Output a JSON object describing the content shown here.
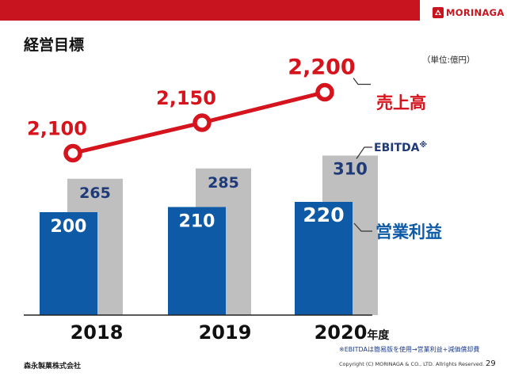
{
  "header": {
    "page_title": "経営目標",
    "unit": "（単位:億円）",
    "logo_text": "MORINAGA",
    "brand_color": "#c8141e"
  },
  "footer": {
    "footnote": "※EBITDAは簡易版を使用→営業利益+減価償却費",
    "copyright": "Copyright (C) MORINAGA & CO., LTD. Allrights Reserved.",
    "page_number": "29",
    "company": "森永製菓株式会社"
  },
  "chart_data": {
    "type": "bar",
    "categories": [
      "2018",
      "2019",
      "2020"
    ],
    "category_suffix": "年度",
    "series": [
      {
        "name": "営業利益",
        "values": [
          200,
          210,
          220
        ],
        "color": "#0e5aa7",
        "kind": "bar"
      },
      {
        "name": "EBITDA※",
        "values": [
          265,
          285,
          310
        ],
        "color": "#bfbfbf",
        "kind": "bar"
      },
      {
        "name": "売上高",
        "values": [
          2100,
          2150,
          2200
        ],
        "labels": [
          "2,100",
          "2,150",
          "2,200"
        ],
        "color": "#d6141d",
        "kind": "line"
      }
    ],
    "grid": false,
    "legend": "right, labels next to series"
  }
}
